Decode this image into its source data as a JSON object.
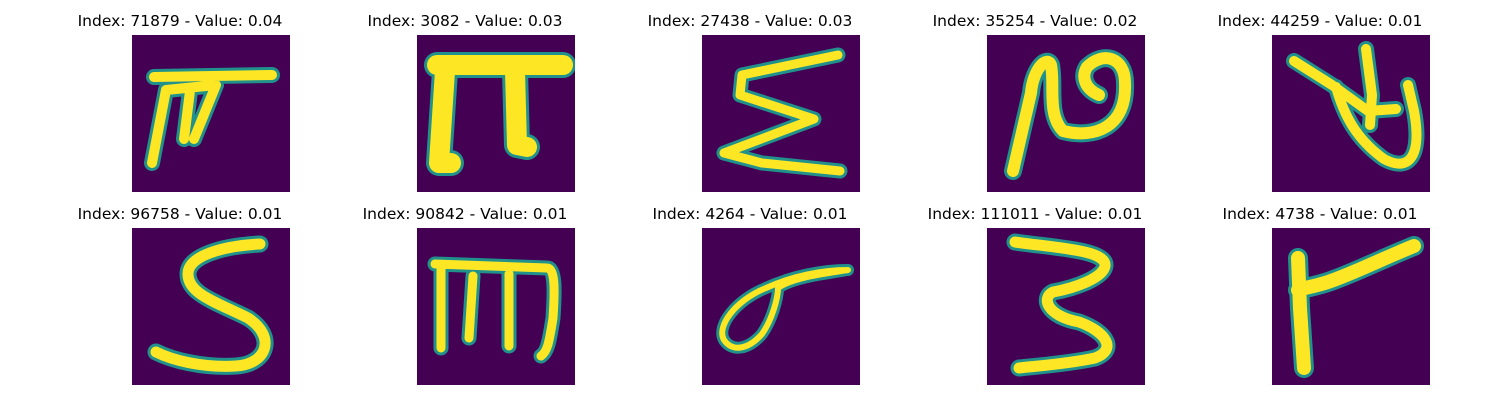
{
  "colors": {
    "background": "#440154",
    "stroke": "#fde725",
    "stroke_edge": "#21918c"
  },
  "panels": [
    {
      "title": "Index: 71879 - Value: 0.04",
      "glyph": "handwritten character resembling a slanted pi with a long top bar"
    },
    {
      "title": "Index: 3082 - Value: 0.03",
      "glyph": "handwritten character resembling a bold pi"
    },
    {
      "title": "Index: 27438 - Value: 0.03",
      "glyph": "handwritten character resembling a zigzag sigma"
    },
    {
      "title": "Index: 35254 - Value: 0.02",
      "glyph": "handwritten character resembling a looped N"
    },
    {
      "title": "Index: 44259 - Value: 0.01",
      "glyph": "handwritten character resembling a crossed leaf shape"
    },
    {
      "title": "Index: 96758 - Value: 0.01",
      "glyph": "handwritten character resembling S"
    },
    {
      "title": "Index: 90842 - Value: 0.01",
      "glyph": "handwritten character resembling a three-legged m"
    },
    {
      "title": "Index: 4264 - Value: 0.01",
      "glyph": "handwritten character resembling a loop with a tail"
    },
    {
      "title": "Index: 111011 - Value: 0.01",
      "glyph": "handwritten character resembling 3"
    },
    {
      "title": "Index: 4738 - Value: 0.01",
      "glyph": "handwritten character resembling a bent stroke"
    }
  ]
}
